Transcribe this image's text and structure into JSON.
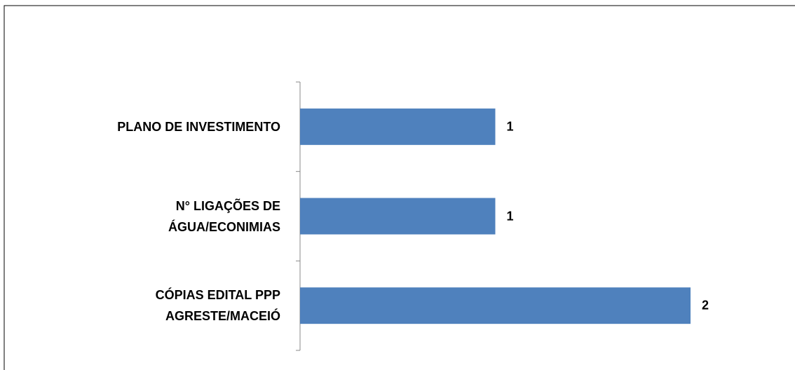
{
  "chart_data": {
    "type": "bar",
    "orientation": "horizontal",
    "categories": [
      "PLANO DE INVESTIMENTO",
      "N° LIGAÇÕES DE ÁGUA/ECONIMIAS",
      "CÓPIAS EDITAL PPP AGRESTE/MACEIÓ"
    ],
    "values": [
      1,
      1,
      2
    ],
    "color": "#4f81bd",
    "xlim": [
      0,
      2
    ]
  }
}
